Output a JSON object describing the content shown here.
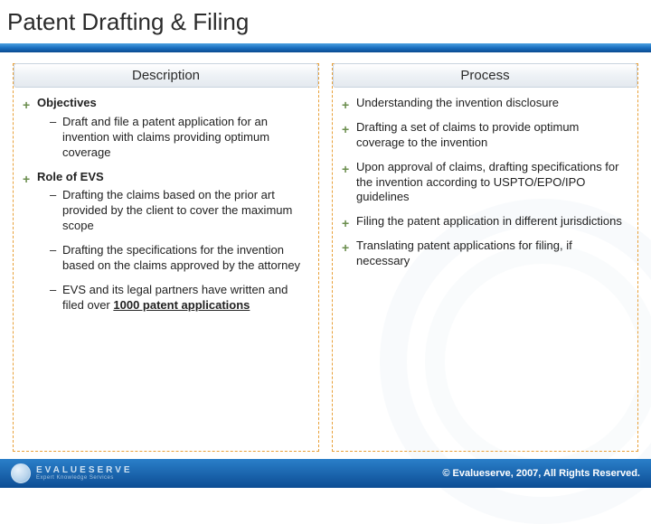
{
  "title": "Patent Drafting & Filing",
  "columns": {
    "left": {
      "header": "Description",
      "items": [
        {
          "label": "Objectives",
          "bold": true,
          "sub": [
            "Draft and file a patent application for an invention with claims providing optimum coverage"
          ]
        },
        {
          "label": "Role of EVS",
          "bold": true,
          "sub": [
            "Drafting the claims based on the prior art provided by the client to cover the maximum scope",
            "Drafting the specifications for the invention based on the claims approved by the attorney"
          ],
          "sub_extra_html": "EVS and its legal partners have written and filed over <span class=\"bold uline\">1000 patent applications</span>"
        }
      ]
    },
    "right": {
      "header": "Process",
      "items": [
        {
          "label": "Understanding the invention disclosure"
        },
        {
          "label": "Drafting a set of claims to provide optimum coverage to the invention"
        },
        {
          "label": "Upon approval of claims, drafting specifications for the invention according to USPTO/EPO/IPO guidelines"
        },
        {
          "label": "Filing the patent application in different jurisdictions"
        },
        {
          "label": "Translating patent applications for filing, if necessary"
        }
      ]
    }
  },
  "footer": {
    "logo_text": "EVALUESERVE",
    "logo_sub": "Expert Knowledge Services",
    "copyright": "© Evalueserve, 2007, All Rights Reserved."
  },
  "colors": {
    "accent_border": "#e8a038",
    "plus_color": "#6b8e4e",
    "blue_top": "#2a7fc9",
    "blue_bottom": "#0d4d94"
  }
}
